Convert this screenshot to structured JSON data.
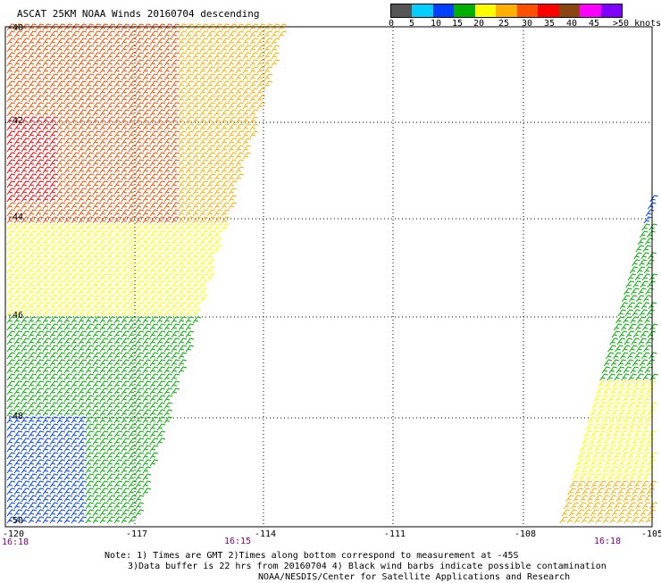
{
  "title": "ASCAT 25KM NOAA Winds 20160704 descending",
  "colorbar": {
    "colors": [
      "#555555",
      "#00cfff",
      "#0040ff",
      "#00b000",
      "#ffff00",
      "#ffb000",
      "#ff5000",
      "#ff0000",
      "#8b4513",
      "#ff00ff",
      "#8000ff"
    ],
    "labels": [
      "0",
      "5",
      "10",
      "15",
      "20",
      "25",
      "30",
      "35",
      "40",
      "45",
      ">50 knots"
    ]
  },
  "axes": {
    "lon_labels": [
      "-120",
      "-117",
      "-114",
      "-111",
      "-108",
      "-105"
    ],
    "lat_labels": [
      "-40",
      "-42",
      "-44",
      "-46",
      "-48",
      "-50"
    ],
    "times": [
      "16:18",
      "16:15",
      "16:18"
    ]
  },
  "notes": [
    "Note: 1) Times are GMT 2)Times along bottom correspond to measurement at -45S",
    "3)Data buffer is 22 hrs from 20160704 4) Black wind barbs indicate possible contamination",
    "NOAA/NESDIS/Center for Satellite Applications and Research"
  ]
}
